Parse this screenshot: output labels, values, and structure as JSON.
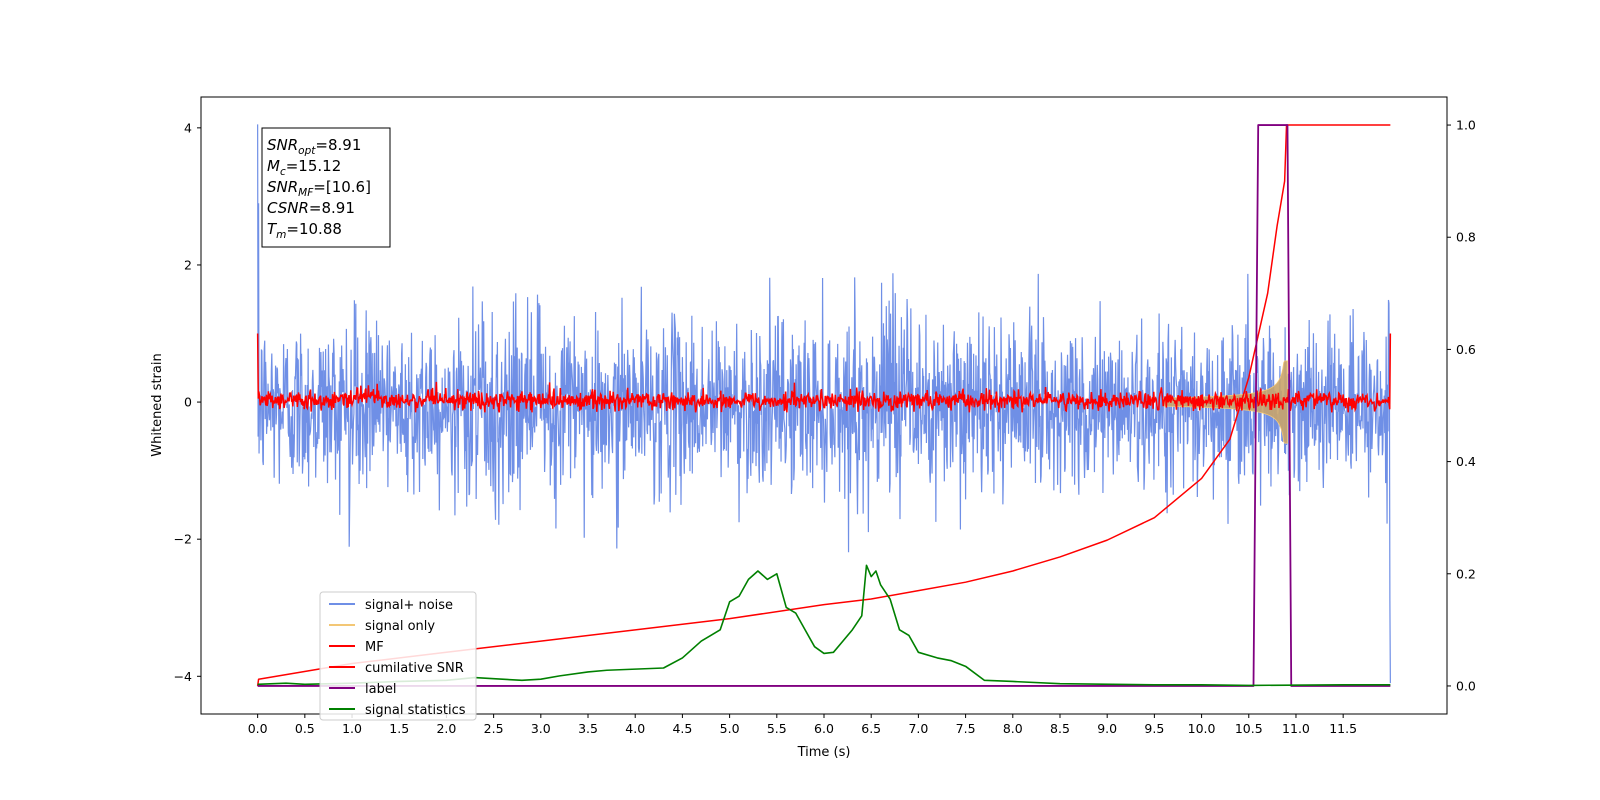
{
  "chart_data": {
    "type": "line",
    "xlabel": "Time (s)",
    "ylabel": "Whitened strain",
    "xlim": [
      -0.6,
      12.6
    ],
    "ylim": [
      -4.55,
      4.45
    ],
    "ylim_right": [
      -0.05,
      1.05
    ],
    "xticks": [
      "0.0",
      "0.5",
      "1.0",
      "1.5",
      "2.0",
      "2.5",
      "3.0",
      "3.5",
      "4.0",
      "4.5",
      "5.0",
      "5.5",
      "6.0",
      "6.5",
      "7.0",
      "7.5",
      "8.0",
      "8.5",
      "9.0",
      "9.5",
      "10.0",
      "10.5",
      "11.0",
      "11.5"
    ],
    "yticks_left": [
      "4",
      "2",
      "0",
      "−2",
      "−4"
    ],
    "yticks_left_values": [
      4,
      2,
      0,
      -2,
      -4
    ],
    "yticks_right": [
      "1.0",
      "0.8",
      "0.6",
      "0.4",
      "0.2",
      "0.0"
    ],
    "yticks_right_values": [
      1.0,
      0.8,
      0.6,
      0.4,
      0.2,
      0.0
    ],
    "grid": false,
    "legend_placement": "lower-left",
    "annotations": [
      {
        "main": "SNR",
        "sub": "opt",
        "value": "=8.91"
      },
      {
        "main": "M",
        "sub": "c",
        "value": "=15.12"
      },
      {
        "main": "SNR",
        "sub": "MF",
        "value": "=[10.6]"
      },
      {
        "main": "CSNR",
        "sub": "",
        "value": "=8.91"
      },
      {
        "main": "T",
        "sub": "m",
        "value": "=10.88"
      }
    ],
    "series": [
      {
        "name": "signal+ noise",
        "color": "#6f8fe6",
        "axis": "left",
        "kind": "noise",
        "time_range": [
          0.0,
          12.0
        ],
        "amplitude_range": [
          -2.2,
          2.2
        ],
        "edge_spikes": [
          4.05,
          -4.1
        ]
      },
      {
        "name": "signal only",
        "color": "#f3c775",
        "axis": "left",
        "kind": "chirp",
        "peak_time": 10.88,
        "peak_amplitude": 0.6
      },
      {
        "name": "MF",
        "color": "#ff0000",
        "axis": "left",
        "kind": "noise",
        "time_range": [
          0.0,
          12.0
        ],
        "amplitude_range": [
          -0.15,
          0.3
        ],
        "edge_values": [
          1.0,
          1.0
        ]
      },
      {
        "name": "cumilative SNR",
        "color": "#ff0000",
        "axis": "right",
        "kind": "curve",
        "x": [
          0.0,
          0.01,
          1.0,
          2.0,
          3.0,
          4.0,
          5.0,
          6.0,
          6.5,
          7.0,
          7.5,
          8.0,
          8.5,
          9.0,
          9.5,
          10.0,
          10.3,
          10.5,
          10.7,
          10.8,
          10.88,
          10.9,
          12.0
        ],
        "values": [
          0.0,
          0.012,
          0.04,
          0.06,
          0.08,
          0.1,
          0.12,
          0.145,
          0.155,
          0.17,
          0.185,
          0.205,
          0.23,
          0.26,
          0.3,
          0.37,
          0.44,
          0.55,
          0.7,
          0.82,
          0.9,
          1.0,
          1.0
        ]
      },
      {
        "name": "label",
        "color": "#800080",
        "axis": "right",
        "kind": "step",
        "x": [
          0.0,
          10.55,
          10.6,
          10.91,
          10.95,
          12.0
        ],
        "values": [
          0.0,
          0.0,
          1.0,
          1.0,
          0.0,
          0.0
        ]
      },
      {
        "name": "signal statistics",
        "color": "#008000",
        "axis": "right",
        "kind": "curve",
        "x": [
          0.0,
          0.3,
          0.5,
          1.0,
          1.5,
          2.0,
          2.3,
          2.5,
          2.8,
          3.0,
          3.2,
          3.5,
          3.7,
          4.0,
          4.3,
          4.5,
          4.7,
          4.9,
          5.0,
          5.1,
          5.2,
          5.3,
          5.4,
          5.5,
          5.6,
          5.7,
          5.8,
          5.9,
          6.0,
          6.1,
          6.2,
          6.3,
          6.4,
          6.45,
          6.5,
          6.55,
          6.6,
          6.7,
          6.8,
          6.9,
          7.0,
          7.2,
          7.35,
          7.5,
          7.7,
          8.0,
          8.5,
          9.5,
          10.0,
          10.5,
          11.5,
          12.0
        ],
        "values": [
          0.003,
          0.005,
          0.003,
          0.005,
          0.008,
          0.01,
          0.015,
          0.013,
          0.01,
          0.012,
          0.018,
          0.025,
          0.028,
          0.03,
          0.032,
          0.05,
          0.08,
          0.1,
          0.15,
          0.16,
          0.19,
          0.205,
          0.19,
          0.2,
          0.14,
          0.13,
          0.1,
          0.07,
          0.058,
          0.06,
          0.08,
          0.1,
          0.125,
          0.215,
          0.195,
          0.205,
          0.18,
          0.155,
          0.1,
          0.09,
          0.06,
          0.05,
          0.045,
          0.035,
          0.01,
          0.008,
          0.004,
          0.002,
          0.002,
          0.001,
          0.002,
          0.002
        ]
      }
    ]
  }
}
